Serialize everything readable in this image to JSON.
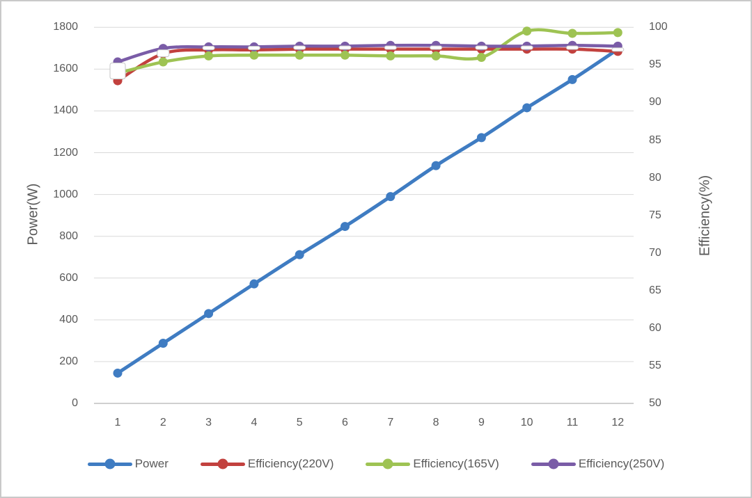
{
  "chart_data": {
    "type": "line",
    "title": "",
    "xlabel": "",
    "x_ticks": [
      1,
      2,
      3,
      4,
      5,
      6,
      7,
      8,
      9,
      10,
      11,
      12
    ],
    "left_axis": {
      "label": "Power(W)",
      "min": 0,
      "max": 1800,
      "ticks": [
        0,
        200,
        400,
        600,
        800,
        1000,
        1200,
        1400,
        1600,
        1800
      ]
    },
    "right_axis": {
      "label": "Efficiency(%)",
      "min": 50,
      "max": 100,
      "ticks": [
        50,
        55,
        60,
        65,
        70,
        75,
        80,
        85,
        90,
        95,
        100
      ]
    },
    "grid": true,
    "legend_position": "bottom",
    "series": [
      {
        "name": "Power",
        "axis": "left",
        "color": "#3F7CC2",
        "marker": "circle",
        "values": [
          145,
          288,
          430,
          572,
          712,
          847,
          990,
          1138,
          1272,
          1415,
          1550,
          1695
        ]
      },
      {
        "name": "Efficiency(220V)",
        "axis": "right",
        "color": "#C2413E",
        "marker": "circle",
        "values": [
          92.9,
          96.5,
          97.0,
          97.0,
          97.1,
          97.1,
          97.1,
          97.1,
          97.1,
          97.1,
          97.1,
          96.8
        ]
      },
      {
        "name": "Efficiency(165V)",
        "axis": "right",
        "color": "#9EC353",
        "marker": "circle",
        "values": [
          93.9,
          95.4,
          96.2,
          96.3,
          96.3,
          96.3,
          96.2,
          96.2,
          96.0,
          99.5,
          99.2,
          99.3
        ]
      },
      {
        "name": "Efficiency(250V)",
        "axis": "right",
        "color": "#7A5CA7",
        "marker": "circle",
        "values": [
          95.4,
          97.2,
          97.4,
          97.4,
          97.5,
          97.5,
          97.6,
          97.6,
          97.5,
          97.5,
          97.6,
          97.5
        ]
      }
    ],
    "white_overlay_markers": {
      "fill": "#FFFFFF",
      "border": "#C6C6C6",
      "points": [
        {
          "x": 1,
          "eff": 94.2,
          "w": 22,
          "h": 23
        },
        {
          "x": 2,
          "eff": 96.55,
          "w": 17,
          "h": 10
        },
        {
          "x": 3,
          "eff": 97.25,
          "w": 17,
          "h": 5
        },
        {
          "x": 4,
          "eff": 97.25,
          "w": 17,
          "h": 5
        },
        {
          "x": 5,
          "eff": 97.3,
          "w": 17,
          "h": 5
        },
        {
          "x": 6,
          "eff": 97.3,
          "w": 17,
          "h": 5
        },
        {
          "x": 7,
          "eff": 97.3,
          "w": 17,
          "h": 5
        },
        {
          "x": 8,
          "eff": 97.3,
          "w": 17,
          "h": 5
        },
        {
          "x": 9,
          "eff": 97.3,
          "w": 17,
          "h": 5
        },
        {
          "x": 10,
          "eff": 97.3,
          "w": 17,
          "h": 5
        },
        {
          "x": 11,
          "eff": 97.3,
          "w": 17,
          "h": 5
        },
        {
          "x": 12,
          "eff": 97.05,
          "w": 17,
          "h": 5
        }
      ]
    },
    "colors": {
      "gridline": "#D9D9D9",
      "axis_line": "#BFBFBF",
      "text": "#595959",
      "background": "#FFFFFF",
      "frame_border": "#C9C9C9"
    }
  }
}
